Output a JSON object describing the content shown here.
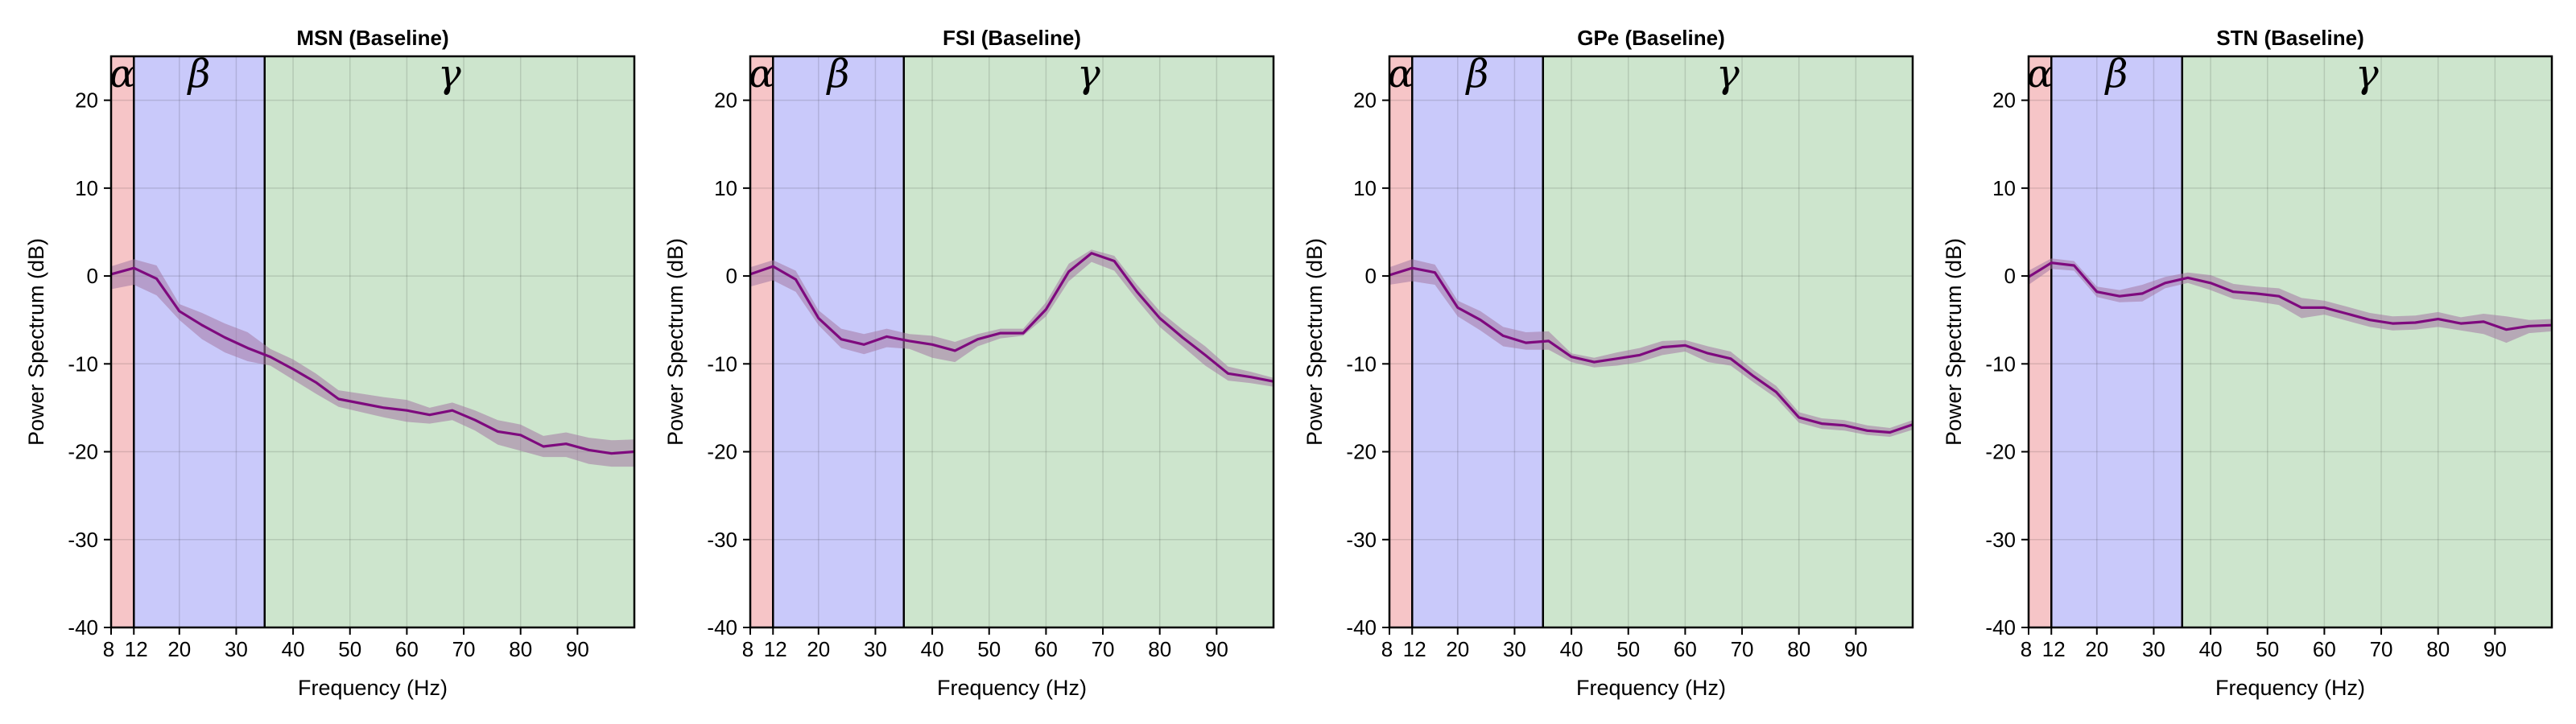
{
  "figure": {
    "x_ticks": [
      8,
      12,
      20,
      30,
      40,
      50,
      60,
      70,
      80,
      90
    ],
    "y_ticks": [
      -40,
      -30,
      -20,
      -10,
      0,
      10,
      20
    ],
    "xlim": [
      8,
      100
    ],
    "ylim": [
      -40,
      25
    ],
    "xlabel": "Frequency (Hz)",
    "ylabel": "Power Spectrum (dB)",
    "bands": [
      {
        "label": "α",
        "from": 8,
        "to": 12,
        "color": "#f6c5c7"
      },
      {
        "label": "β",
        "from": 12,
        "to": 35,
        "color": "#c9c9fa"
      },
      {
        "label": "γ",
        "from": 35,
        "to": 100,
        "color": "#cde5cd"
      }
    ],
    "line_color": "#7e0a7e",
    "band_fill_color": "#a479a4"
  },
  "chart_data": [
    {
      "type": "line",
      "title": "MSN (Baseline)",
      "x": [
        8,
        12,
        16,
        20,
        24,
        28,
        32,
        36,
        40,
        44,
        48,
        52,
        56,
        60,
        64,
        68,
        72,
        76,
        80,
        84,
        88,
        92,
        96,
        100
      ],
      "y": [
        0.2,
        0.9,
        -0.3,
        -4.0,
        -5.6,
        -7.0,
        -8.2,
        -9.2,
        -10.6,
        -12.1,
        -14.0,
        -14.5,
        -15.0,
        -15.3,
        -15.8,
        -15.3,
        -16.4,
        -17.7,
        -18.1,
        -19.4,
        -19.1,
        -19.8,
        -20.2,
        -20.0
      ],
      "lower": [
        -1.5,
        -1.0,
        -2.2,
        -5.0,
        -7.2,
        -8.7,
        -9.7,
        -10.2,
        -11.8,
        -13.4,
        -14.9,
        -15.5,
        -16.1,
        -16.6,
        -16.8,
        -16.4,
        -17.6,
        -19.2,
        -19.9,
        -20.6,
        -20.6,
        -21.4,
        -21.7,
        -21.7
      ],
      "upper": [
        1.1,
        1.9,
        1.2,
        -3.2,
        -4.2,
        -5.4,
        -6.4,
        -8.3,
        -9.5,
        -11.1,
        -13.0,
        -13.4,
        -13.8,
        -14.1,
        -15.0,
        -14.4,
        -15.3,
        -16.4,
        -16.9,
        -18.2,
        -17.8,
        -18.4,
        -18.7,
        -18.6
      ]
    },
    {
      "type": "line",
      "title": "FSI (Baseline)",
      "x": [
        8,
        12,
        16,
        20,
        24,
        28,
        32,
        36,
        40,
        44,
        48,
        52,
        56,
        60,
        64,
        68,
        72,
        76,
        80,
        84,
        88,
        92,
        96,
        100
      ],
      "y": [
        0.2,
        1.1,
        -0.4,
        -4.8,
        -7.2,
        -7.8,
        -6.9,
        -7.4,
        -7.8,
        -8.5,
        -7.2,
        -6.5,
        -6.5,
        -3.8,
        0.5,
        2.6,
        1.7,
        -1.8,
        -4.8,
        -7.0,
        -9.0,
        -11.1,
        -11.5,
        -12.0
      ],
      "lower": [
        -1.2,
        -0.5,
        -1.8,
        -5.6,
        -8.2,
        -8.9,
        -8.1,
        -8.3,
        -9.3,
        -9.8,
        -8.0,
        -7.1,
        -6.8,
        -4.6,
        -0.6,
        1.6,
        0.6,
        -2.7,
        -5.8,
        -8.0,
        -10.2,
        -11.9,
        -12.2,
        -12.6
      ],
      "upper": [
        1.0,
        1.8,
        0.6,
        -3.9,
        -6.0,
        -6.6,
        -6.0,
        -6.6,
        -6.8,
        -7.5,
        -6.6,
        -6.0,
        -6.0,
        -3.0,
        1.4,
        3.0,
        2.3,
        -1.0,
        -4.0,
        -6.1,
        -8.0,
        -10.3,
        -10.9,
        -11.6
      ]
    },
    {
      "type": "line",
      "title": "GPe (Baseline)",
      "x": [
        8,
        12,
        16,
        20,
        24,
        28,
        32,
        36,
        40,
        44,
        48,
        52,
        56,
        60,
        64,
        68,
        72,
        76,
        80,
        84,
        88,
        92,
        96,
        100
      ],
      "y": [
        0.1,
        0.9,
        0.4,
        -3.6,
        -5.0,
        -6.8,
        -7.6,
        -7.4,
        -9.2,
        -9.8,
        -9.4,
        -9.0,
        -8.1,
        -7.9,
        -8.8,
        -9.4,
        -11.4,
        -13.2,
        -16.1,
        -16.8,
        -17.0,
        -17.6,
        -17.8,
        -16.9
      ],
      "lower": [
        -1.0,
        -0.6,
        -1.0,
        -4.6,
        -6.2,
        -8.0,
        -8.4,
        -8.4,
        -9.8,
        -10.4,
        -10.2,
        -9.8,
        -9.0,
        -8.6,
        -9.8,
        -10.2,
        -12.1,
        -13.9,
        -16.7,
        -17.4,
        -17.6,
        -18.1,
        -18.3,
        -17.5
      ],
      "upper": [
        1.0,
        1.9,
        1.3,
        -2.8,
        -4.0,
        -5.8,
        -6.4,
        -6.3,
        -8.8,
        -9.3,
        -8.7,
        -8.2,
        -7.4,
        -7.3,
        -8.0,
        -8.6,
        -10.7,
        -12.5,
        -15.5,
        -16.2,
        -16.4,
        -17.0,
        -17.3,
        -16.4
      ]
    },
    {
      "type": "line",
      "title": "STN (Baseline)",
      "x": [
        8,
        12,
        16,
        20,
        24,
        28,
        32,
        36,
        40,
        44,
        48,
        52,
        56,
        60,
        64,
        68,
        72,
        76,
        80,
        84,
        88,
        92,
        96,
        100
      ],
      "y": [
        -0.1,
        1.5,
        1.2,
        -1.8,
        -2.3,
        -2.0,
        -0.8,
        -0.2,
        -0.8,
        -1.8,
        -2.0,
        -2.3,
        -3.6,
        -3.6,
        -4.3,
        -5.0,
        -5.4,
        -5.3,
        -4.9,
        -5.4,
        -5.2,
        -6.1,
        -5.7,
        -5.6
      ],
      "lower": [
        -1.0,
        0.8,
        0.6,
        -2.4,
        -3.0,
        -2.9,
        -1.4,
        -0.8,
        -1.6,
        -2.6,
        -2.9,
        -3.3,
        -4.8,
        -4.4,
        -5.1,
        -5.8,
        -6.2,
        -6.1,
        -5.8,
        -6.2,
        -6.6,
        -7.6,
        -6.5,
        -6.3
      ],
      "upper": [
        0.6,
        2.0,
        1.7,
        -1.2,
        -1.6,
        -1.0,
        -0.1,
        0.4,
        0.1,
        -0.9,
        -1.2,
        -1.4,
        -2.5,
        -2.8,
        -3.5,
        -4.2,
        -4.6,
        -4.5,
        -4.1,
        -4.7,
        -4.3,
        -4.6,
        -5.0,
        -4.9
      ]
    }
  ]
}
